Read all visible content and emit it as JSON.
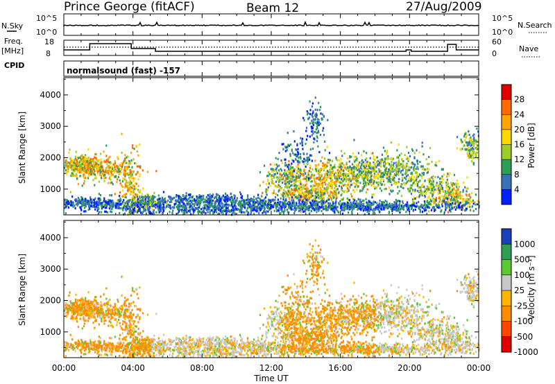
{
  "header": {
    "station": "Prince George (fitACF)",
    "beam": "Beam 12",
    "date": "27/Aug/2009"
  },
  "control_panel": {
    "nsky_label": "N.Sky",
    "nsearch_label": "N.Search",
    "nsky_ticks": [
      "10^5",
      "10^0"
    ],
    "nsearch_ticks": [
      "10^5",
      "10^0"
    ],
    "freq_label": "Freq.",
    "freq_unit": "[MHz]",
    "freq_ticks": [
      "18",
      "8"
    ],
    "nave_label": "Nave",
    "nave_ticks": [
      "60",
      "0"
    ],
    "cpid_label": "CPID",
    "cpid_text": "normalsound (fast) -157"
  },
  "chart_data": [
    {
      "type": "heatmap",
      "name": "power-panel",
      "xlabel": "",
      "ylabel": "Slant Range [km]",
      "x_ticks": [
        "00:00",
        "04:00",
        "08:00",
        "12:00",
        "16:00",
        "20:00",
        "00:00"
      ],
      "y_ticks": [
        "1000",
        "2000",
        "3000",
        "4000"
      ],
      "xlim": [
        "00:00",
        "24:00"
      ],
      "ylim": [
        180,
        4550
      ],
      "colorbar": {
        "label": "Power [dB]",
        "ticks": [
          "28",
          "24",
          "20",
          "16",
          "12",
          "8",
          "4"
        ],
        "colors": [
          "#e00000",
          "#ff6a00",
          "#ffa500",
          "#ffd700",
          "#9ccc28",
          "#2e9e55",
          "#3a70b8",
          "#0020ff"
        ]
      }
    },
    {
      "type": "heatmap",
      "name": "velocity-panel",
      "xlabel": "Time UT",
      "ylabel": "Slant Range [km]",
      "x_ticks": [
        "00:00",
        "04:00",
        "08:00",
        "12:00",
        "16:00",
        "20:00",
        "00:00"
      ],
      "y_ticks": [
        "1000",
        "2000",
        "3000",
        "4000"
      ],
      "xlim": [
        "00:00",
        "24:00"
      ],
      "ylim": [
        180,
        4550
      ],
      "colorbar": {
        "label": "Velocity [m s⁻¹]",
        "ticks": [
          "1000",
          "500",
          "100",
          "25",
          "-25",
          "-100",
          "-500",
          "-1000"
        ],
        "colors": [
          "#1a3fb8",
          "#2e9e55",
          "#5cc832",
          "#c8c8c8",
          "#ffb400",
          "#ff8c00",
          "#ff4500",
          "#e00000"
        ]
      }
    }
  ]
}
